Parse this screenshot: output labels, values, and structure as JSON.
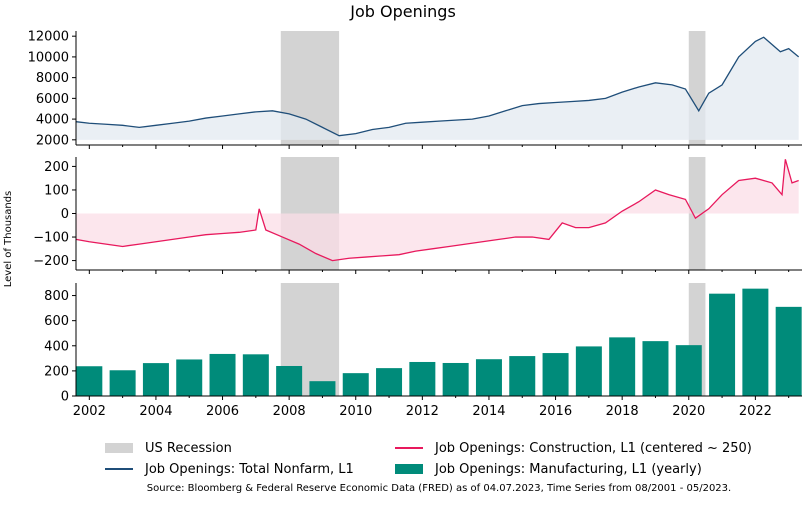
{
  "title": "Job Openings",
  "ylabel": "Level of Thousands",
  "source": "Source: Bloomberg & Federal Reserve Economic Data (FRED) as of 04.07.2023, Time Series from 08/2001 - 05/2023.",
  "colors": {
    "recession": "#d3d3d3",
    "total": "#1f4e79",
    "total_fill": "#e3e9f0",
    "construction": "#e8195d",
    "construction_fill": "#fbdde7",
    "manufacturing": "#008b7a"
  },
  "legend": {
    "recession": "US Recession",
    "total": "Job Openings: Total Nonfarm, L1",
    "construction": "Job Openings: Construction, L1 (centered ~ 250)",
    "manufacturing": "Job Openings: Manufacturing, L1 (yearly)"
  },
  "chart_data": {
    "type": "line",
    "x_range": [
      2001.6,
      2023.4
    ],
    "x_ticks": [
      "2002",
      "2004",
      "2006",
      "2008",
      "2010",
      "2012",
      "2014",
      "2016",
      "2018",
      "2020",
      "2022"
    ],
    "recessions": [
      [
        2007.75,
        2009.5
      ],
      [
        2020.0,
        2020.5
      ]
    ],
    "panels": [
      {
        "name": "total",
        "type": "line",
        "ylim": [
          1500,
          12500
        ],
        "yticks": [
          "2000",
          "4000",
          "6000",
          "8000",
          "10000",
          "12000"
        ],
        "series": {
          "name": "Job Openings: Total Nonfarm, L1",
          "points": [
            [
              2001.6,
              3750
            ],
            [
              2002.0,
              3600
            ],
            [
              2002.5,
              3500
            ],
            [
              2003.0,
              3400
            ],
            [
              2003.5,
              3200
            ],
            [
              2004.0,
              3400
            ],
            [
              2004.5,
              3600
            ],
            [
              2005.0,
              3800
            ],
            [
              2005.5,
              4100
            ],
            [
              2006.0,
              4300
            ],
            [
              2006.5,
              4500
            ],
            [
              2007.0,
              4700
            ],
            [
              2007.5,
              4800
            ],
            [
              2008.0,
              4500
            ],
            [
              2008.5,
              4000
            ],
            [
              2009.0,
              3200
            ],
            [
              2009.5,
              2400
            ],
            [
              2010.0,
              2600
            ],
            [
              2010.5,
              3000
            ],
            [
              2011.0,
              3200
            ],
            [
              2011.5,
              3600
            ],
            [
              2012.0,
              3700
            ],
            [
              2012.5,
              3800
            ],
            [
              2013.0,
              3900
            ],
            [
              2013.5,
              4000
            ],
            [
              2014.0,
              4300
            ],
            [
              2014.5,
              4800
            ],
            [
              2015.0,
              5300
            ],
            [
              2015.5,
              5500
            ],
            [
              2016.0,
              5600
            ],
            [
              2016.5,
              5700
            ],
            [
              2017.0,
              5800
            ],
            [
              2017.5,
              6000
            ],
            [
              2018.0,
              6600
            ],
            [
              2018.5,
              7100
            ],
            [
              2019.0,
              7500
            ],
            [
              2019.5,
              7300
            ],
            [
              2019.9,
              6900
            ],
            [
              2020.3,
              4800
            ],
            [
              2020.6,
              6500
            ],
            [
              2021.0,
              7300
            ],
            [
              2021.5,
              10000
            ],
            [
              2022.0,
              11500
            ],
            [
              2022.25,
              11900
            ],
            [
              2022.5,
              11200
            ],
            [
              2022.75,
              10500
            ],
            [
              2023.0,
              10800
            ],
            [
              2023.3,
              10000
            ]
          ]
        }
      },
      {
        "name": "construction",
        "type": "line",
        "ylim": [
          -240,
          240
        ],
        "yticks": [
          "−200",
          "−100",
          "0",
          "100",
          "200"
        ],
        "series": {
          "name": "Job Openings: Construction, L1 (centered ~ 250)",
          "points": [
            [
              2001.6,
              -110
            ],
            [
              2002.0,
              -120
            ],
            [
              2002.5,
              -130
            ],
            [
              2003.0,
              -140
            ],
            [
              2003.5,
              -130
            ],
            [
              2004.0,
              -120
            ],
            [
              2004.5,
              -110
            ],
            [
              2005.0,
              -100
            ],
            [
              2005.5,
              -90
            ],
            [
              2006.0,
              -85
            ],
            [
              2006.5,
              -80
            ],
            [
              2007.0,
              -70
            ],
            [
              2007.1,
              20
            ],
            [
              2007.3,
              -70
            ],
            [
              2007.8,
              -100
            ],
            [
              2008.3,
              -130
            ],
            [
              2008.8,
              -170
            ],
            [
              2009.3,
              -200
            ],
            [
              2009.8,
              -190
            ],
            [
              2010.3,
              -185
            ],
            [
              2010.8,
              -180
            ],
            [
              2011.3,
              -175
            ],
            [
              2011.8,
              -160
            ],
            [
              2012.3,
              -150
            ],
            [
              2012.8,
              -140
            ],
            [
              2013.3,
              -130
            ],
            [
              2013.8,
              -120
            ],
            [
              2014.3,
              -110
            ],
            [
              2014.8,
              -100
            ],
            [
              2015.3,
              -100
            ],
            [
              2015.8,
              -110
            ],
            [
              2016.2,
              -40
            ],
            [
              2016.6,
              -60
            ],
            [
              2017.0,
              -60
            ],
            [
              2017.5,
              -40
            ],
            [
              2018.0,
              10
            ],
            [
              2018.5,
              50
            ],
            [
              2019.0,
              100
            ],
            [
              2019.4,
              80
            ],
            [
              2019.9,
              60
            ],
            [
              2020.2,
              -20
            ],
            [
              2020.6,
              20
            ],
            [
              2021.0,
              80
            ],
            [
              2021.5,
              140
            ],
            [
              2022.0,
              150
            ],
            [
              2022.5,
              130
            ],
            [
              2022.8,
              80
            ],
            [
              2022.9,
              230
            ],
            [
              2023.1,
              130
            ],
            [
              2023.3,
              140
            ]
          ]
        }
      },
      {
        "name": "manufacturing",
        "type": "bar",
        "ylim": [
          0,
          900
        ],
        "yticks": [
          "0",
          "200",
          "400",
          "600",
          "800"
        ],
        "series": {
          "name": "Job Openings: Manufacturing, L1 (yearly)",
          "x": [
            2002,
            2003,
            2004,
            2005,
            2006,
            2007,
            2008,
            2009,
            2010,
            2011,
            2012,
            2013,
            2014,
            2015,
            2016,
            2017,
            2018,
            2019,
            2020,
            2021,
            2022,
            2023
          ],
          "values": [
            237,
            205,
            262,
            291,
            335,
            332,
            239,
            118,
            182,
            222,
            271,
            263,
            293,
            318,
            342,
            395,
            467,
            437,
            405,
            815,
            855,
            710
          ]
        }
      }
    ]
  }
}
